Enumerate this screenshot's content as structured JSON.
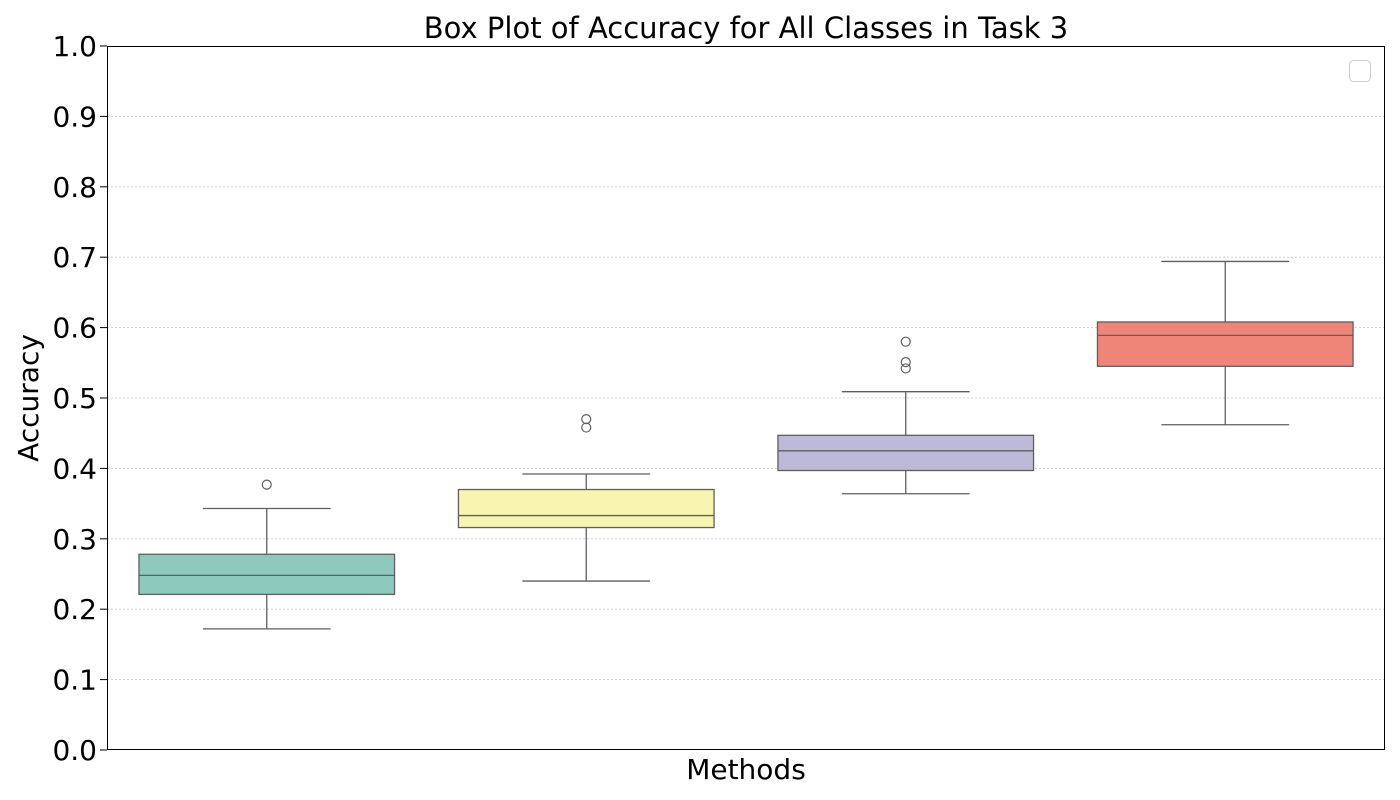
{
  "chart_data": {
    "type": "box",
    "title": "Box Plot of Accuracy for All Classes in Task 3",
    "xlabel": "Methods",
    "ylabel": "Accuracy",
    "ylim": [
      0.0,
      1.0
    ],
    "yticks": [
      "0.0",
      "0.1",
      "0.2",
      "0.3",
      "0.4",
      "0.5",
      "0.6",
      "0.7",
      "0.8",
      "0.9",
      "1.0"
    ],
    "grid": "horizontal dotted",
    "legend": "top-right (empty)",
    "boxes": [
      {
        "whisker_low": 0.172,
        "q1": 0.221,
        "median": 0.248,
        "q3": 0.278,
        "whisker_high": 0.343,
        "outliers": [
          0.377
        ],
        "color": "#8dc9bd"
      },
      {
        "whisker_low": 0.24,
        "q1": 0.316,
        "median": 0.333,
        "q3": 0.37,
        "whisker_high": 0.392,
        "outliers": [
          0.458,
          0.47
        ],
        "color": "#f7f5b0"
      },
      {
        "whisker_low": 0.364,
        "q1": 0.397,
        "median": 0.425,
        "q3": 0.447,
        "whisker_high": 0.509,
        "outliers": [
          0.542,
          0.551,
          0.58
        ],
        "color": "#bdb9d8"
      },
      {
        "whisker_low": 0.462,
        "q1": 0.545,
        "median": 0.589,
        "q3": 0.608,
        "whisker_high": 0.694,
        "outliers": [],
        "color": "#ef8579"
      }
    ],
    "line_color": "#5f5f5f",
    "grid_color": "#c8c8c8"
  }
}
